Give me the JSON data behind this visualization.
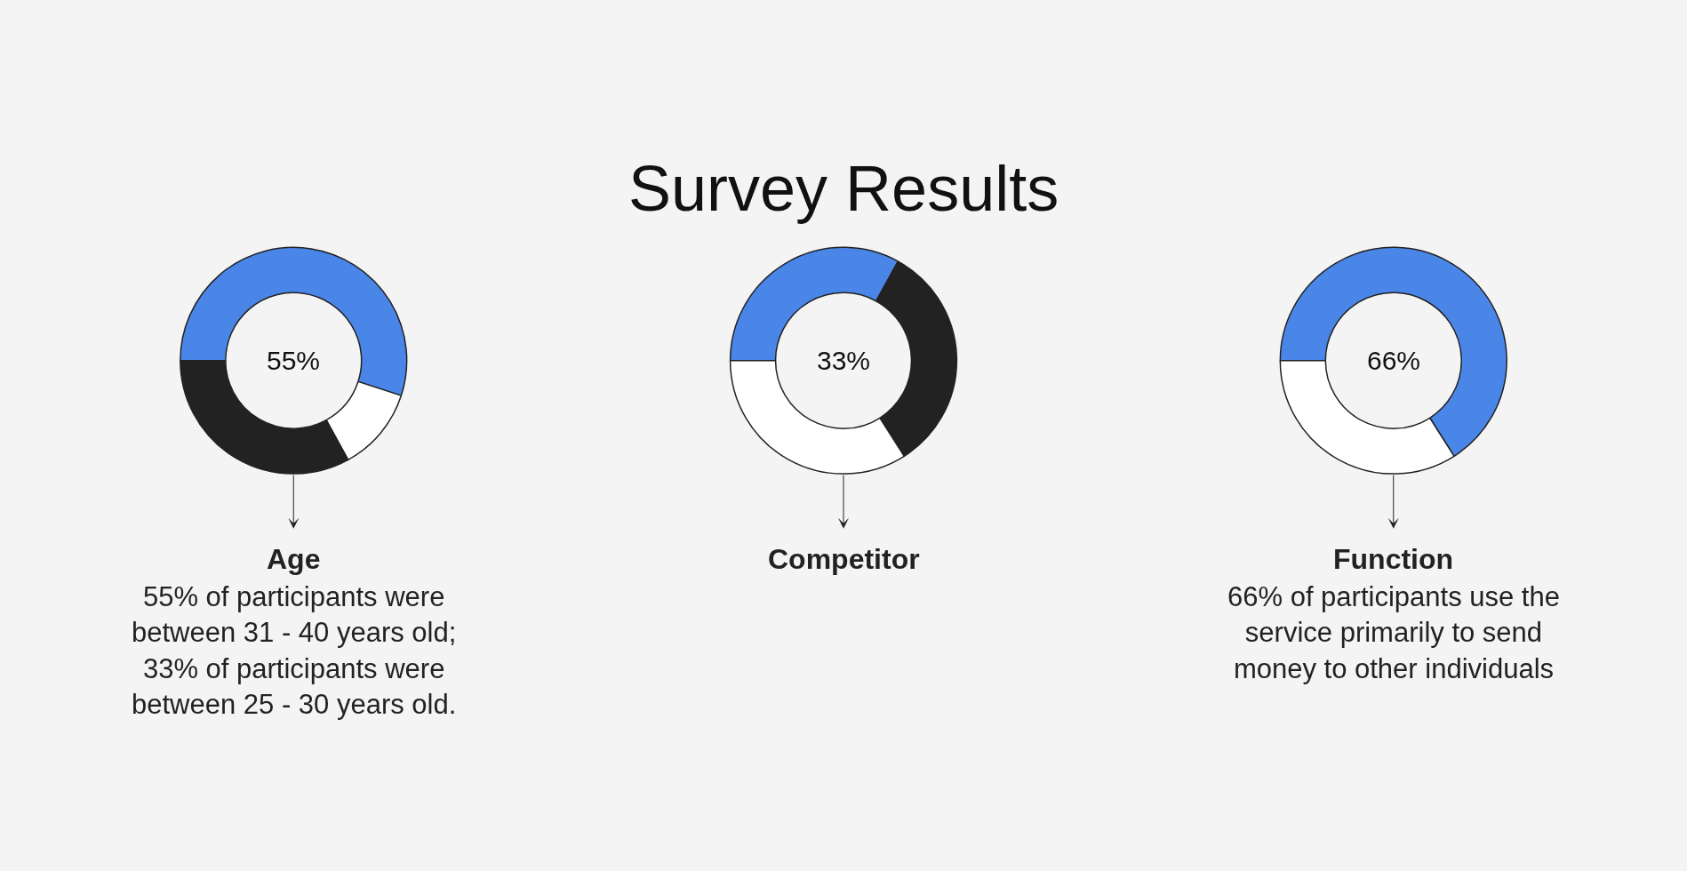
{
  "chart_data": [
    {
      "type": "other",
      "title": "Survey Results"
    },
    {
      "type": "donut",
      "title": "Age",
      "categories": [
        null,
        null,
        null
      ],
      "values": [
        55,
        12,
        33
      ],
      "colors": [
        "#4a86e8",
        "#ffffff",
        "#222222"
      ],
      "annotations": [
        "55%",
        "55% of participants were between 31 - 40 years old; 33% of participants were between 25 - 30 years old."
      ]
    },
    {
      "type": "donut",
      "title": "Competitor",
      "categories": [
        null,
        null,
        null
      ],
      "values": [
        33,
        33,
        34
      ],
      "colors": [
        "#4a86e8",
        "#222222",
        "#ffffff"
      ],
      "annotations": [
        "33%"
      ]
    },
    {
      "type": "donut",
      "title": "Function",
      "categories": [
        null,
        null
      ],
      "values": [
        66,
        34
      ],
      "colors": [
        "#4a86e8",
        "#ffffff"
      ],
      "annotations": [
        "66%",
        "66% of participants use the service primarily to send money to other individuals"
      ]
    }
  ]
}
